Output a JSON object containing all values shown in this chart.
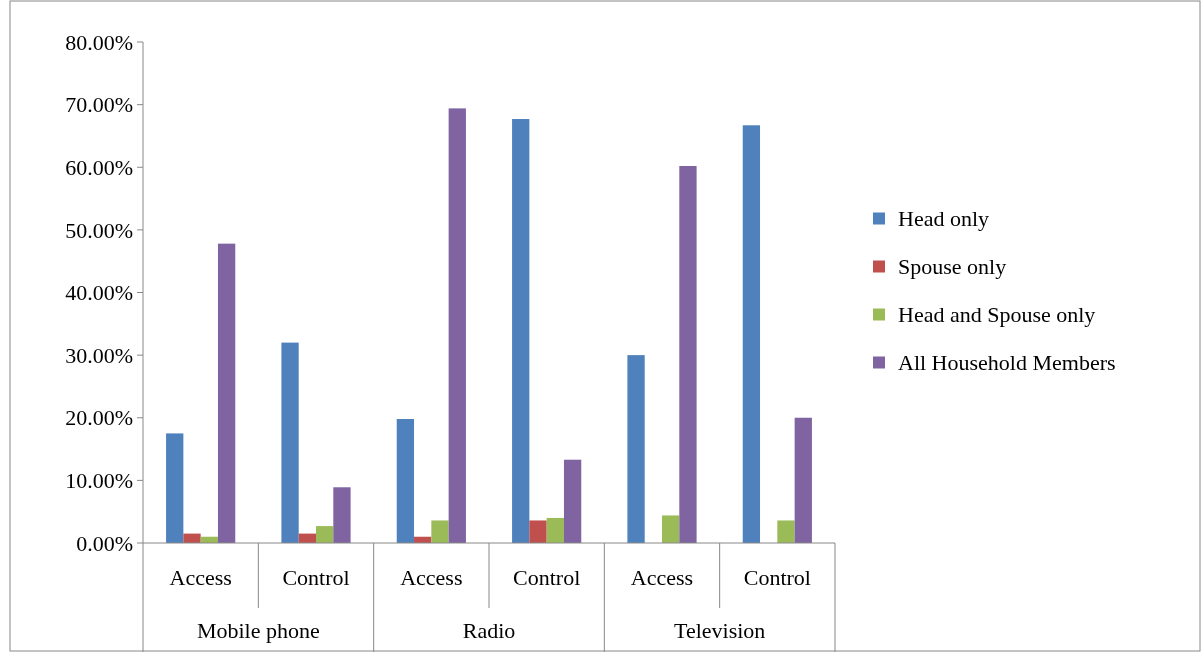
{
  "chart_data": {
    "type": "bar",
    "categories": [
      "Access",
      "Control",
      "Access",
      "Control",
      "Access",
      "Control"
    ],
    "annotations": [
      "Mobile phone",
      "Radio",
      "Television"
    ],
    "series": [
      {
        "name": "Head only",
        "color": "#4f81bd",
        "values": [
          17.5,
          32.0,
          19.8,
          67.7,
          30.0,
          66.7
        ]
      },
      {
        "name": "Spouse only",
        "color": "#c0504d",
        "values": [
          1.5,
          1.5,
          1.0,
          3.6,
          0,
          0
        ]
      },
      {
        "name": "Head and Spouse only",
        "color": "#9bbb59",
        "values": [
          1.0,
          2.7,
          3.6,
          4.0,
          4.4,
          3.6
        ]
      },
      {
        "name": "All Household Members",
        "color": "#8064a2",
        "values": [
          47.8,
          8.9,
          69.4,
          13.3,
          60.2,
          20.0
        ]
      }
    ],
    "ylim": [
      0,
      80
    ],
    "yticks": [
      {
        "value": 0,
        "label": "0.00%"
      },
      {
        "value": 10,
        "label": "10.00%"
      },
      {
        "value": 20,
        "label": "20.00%"
      },
      {
        "value": 30,
        "label": "30.00%"
      },
      {
        "value": 40,
        "label": "40.00%"
      },
      {
        "value": 50,
        "label": "50.00%"
      },
      {
        "value": 60,
        "label": "60.00%"
      },
      {
        "value": 70,
        "label": "70.00%"
      },
      {
        "value": 80,
        "label": "80.00%"
      }
    ],
    "grid": false,
    "legend": "right"
  }
}
